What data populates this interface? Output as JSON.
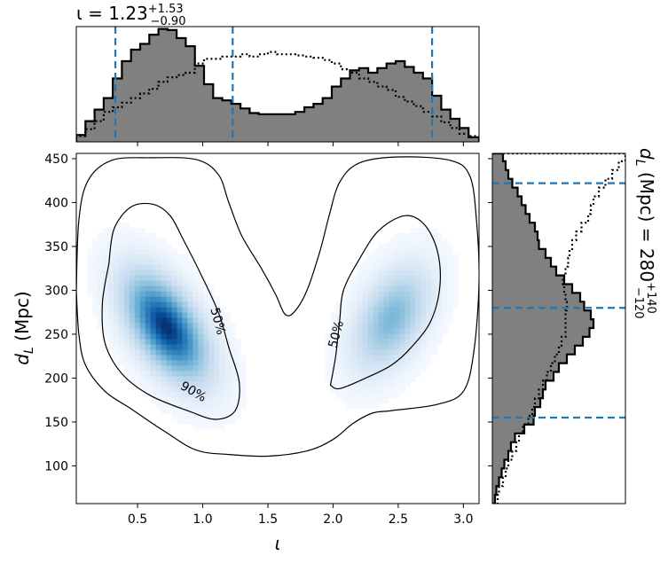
{
  "chart_data": {
    "type": "heatmap",
    "colors": {
      "hist_fill": "#808080",
      "hist_edge": "#000000",
      "dashed": "#1f77b4",
      "density_light": "#f7fbff",
      "density_dark": "#08306b",
      "contour": "#000000"
    },
    "top_title": {
      "symbol": "ι = 1.23",
      "sup": "+1.53",
      "sub": "−0.90"
    },
    "right_title": {
      "symbol": "d",
      "symbol_sub": "L",
      "rest": " (Mpc) = 280",
      "sup": "+140",
      "sub": "−120"
    },
    "main": {
      "xlabel": "ι",
      "ylabel_main": "d",
      "ylabel_sub": "L",
      "ylabel_unit": " (Mpc)",
      "xlim": [
        0.03,
        3.12
      ],
      "ylim": [
        57,
        456
      ],
      "xticks": [
        0.5,
        1.0,
        1.5,
        2.0,
        2.5,
        3.0
      ],
      "xtick_labels": [
        "0.5",
        "1.0",
        "1.5",
        "2.0",
        "2.5",
        "3.0"
      ],
      "yticks": [
        100,
        150,
        200,
        250,
        300,
        350,
        400,
        450
      ],
      "ytick_labels": [
        "100",
        "150",
        "200",
        "250",
        "300",
        "350",
        "400",
        "450"
      ],
      "density_peaks": [
        {
          "x": 0.72,
          "y": 258,
          "sx": 0.22,
          "sy": 42,
          "rho": -0.55,
          "amp": 1.0
        },
        {
          "x": 2.45,
          "y": 268,
          "sx": 0.2,
          "sy": 40,
          "rho": 0.45,
          "amp": 0.55
        }
      ],
      "contours": [
        {
          "label": "90%",
          "label_at": [
            0.93,
            185
          ],
          "label_rot": 30,
          "points": [
            [
              0.03,
              300
            ],
            [
              0.05,
              380
            ],
            [
              0.12,
              425
            ],
            [
              0.3,
              448
            ],
            [
              0.6,
              451
            ],
            [
              0.95,
              449
            ],
            [
              1.12,
              432
            ],
            [
              1.2,
              400
            ],
            [
              1.3,
              362
            ],
            [
              1.45,
              325
            ],
            [
              1.56,
              295
            ],
            [
              1.63,
              273
            ],
            [
              1.7,
              275
            ],
            [
              1.8,
              300
            ],
            [
              1.9,
              345
            ],
            [
              1.97,
              385
            ],
            [
              2.05,
              423
            ],
            [
              2.2,
              445
            ],
            [
              2.5,
              452
            ],
            [
              2.9,
              448
            ],
            [
              3.05,
              430
            ],
            [
              3.1,
              380
            ],
            [
              3.12,
              310
            ],
            [
              3.08,
              230
            ],
            [
              3.0,
              185
            ],
            [
              2.8,
              170
            ],
            [
              2.45,
              163
            ],
            [
              2.3,
              160
            ],
            [
              2.15,
              148
            ],
            [
              2.0,
              130
            ],
            [
              1.8,
              117
            ],
            [
              1.5,
              111
            ],
            [
              1.2,
              113
            ],
            [
              0.95,
              118
            ],
            [
              0.7,
              140
            ],
            [
              0.45,
              165
            ],
            [
              0.25,
              185
            ],
            [
              0.1,
              215
            ],
            [
              0.05,
              250
            ],
            [
              0.03,
              300
            ]
          ]
        },
        {
          "label": "50%",
          "label_at": [
            1.12,
            265
          ],
          "label_rot": 75,
          "points": [
            [
              0.28,
              330
            ],
            [
              0.32,
              370
            ],
            [
              0.45,
              395
            ],
            [
              0.62,
              398
            ],
            [
              0.75,
              385
            ],
            [
              0.85,
              358
            ],
            [
              0.98,
              320
            ],
            [
              1.12,
              275
            ],
            [
              1.2,
              235
            ],
            [
              1.28,
              195
            ],
            [
              1.25,
              163
            ],
            [
              1.1,
              153
            ],
            [
              0.9,
              162
            ],
            [
              0.6,
              180
            ],
            [
              0.38,
              205
            ],
            [
              0.25,
              240
            ],
            [
              0.23,
              285
            ],
            [
              0.28,
              330
            ]
          ]
        },
        {
          "label": "50%",
          "label_at": [
            2.02,
            250
          ],
          "label_rot": -75,
          "points": [
            [
              1.98,
              192
            ],
            [
              2.02,
              225
            ],
            [
              2.05,
              265
            ],
            [
              2.08,
              300
            ],
            [
              2.2,
              335
            ],
            [
              2.35,
              368
            ],
            [
              2.55,
              385
            ],
            [
              2.7,
              375
            ],
            [
              2.8,
              345
            ],
            [
              2.82,
              305
            ],
            [
              2.75,
              265
            ],
            [
              2.6,
              235
            ],
            [
              2.45,
              215
            ],
            [
              2.25,
              200
            ],
            [
              2.05,
              188
            ],
            [
              1.98,
              192
            ]
          ]
        }
      ]
    },
    "top_hist": {
      "xlim": [
        0.03,
        3.12
      ],
      "ylim": [
        0,
        1.0
      ],
      "edges": [
        0.03,
        0.1,
        0.17,
        0.24,
        0.31,
        0.38,
        0.45,
        0.52,
        0.59,
        0.66,
        0.73,
        0.8,
        0.87,
        0.94,
        1.01,
        1.08,
        1.15,
        1.22,
        1.29,
        1.36,
        1.43,
        1.5,
        1.57,
        1.64,
        1.71,
        1.78,
        1.85,
        1.92,
        1.99,
        2.06,
        2.13,
        2.2,
        2.27,
        2.34,
        2.41,
        2.48,
        2.55,
        2.62,
        2.69,
        2.76,
        2.83,
        2.9,
        2.97,
        3.04,
        3.12
      ],
      "values": [
        0.06,
        0.18,
        0.28,
        0.38,
        0.55,
        0.7,
        0.8,
        0.85,
        0.93,
        0.98,
        0.97,
        0.9,
        0.83,
        0.66,
        0.5,
        0.38,
        0.36,
        0.33,
        0.29,
        0.25,
        0.24,
        0.24,
        0.24,
        0.24,
        0.26,
        0.3,
        0.33,
        0.38,
        0.48,
        0.55,
        0.62,
        0.64,
        0.6,
        0.64,
        0.68,
        0.7,
        0.65,
        0.6,
        0.55,
        0.4,
        0.28,
        0.2,
        0.12,
        0.04
      ],
      "prior_values": [
        0.05,
        0.11,
        0.18,
        0.26,
        0.3,
        0.34,
        0.38,
        0.42,
        0.46,
        0.52,
        0.56,
        0.58,
        0.6,
        0.68,
        0.72,
        0.72,
        0.74,
        0.74,
        0.76,
        0.74,
        0.76,
        0.78,
        0.76,
        0.76,
        0.75,
        0.74,
        0.73,
        0.71,
        0.68,
        0.63,
        0.6,
        0.55,
        0.52,
        0.48,
        0.45,
        0.39,
        0.35,
        0.31,
        0.26,
        0.22,
        0.17,
        0.12,
        0.07,
        0.05
      ],
      "dashed_lines": [
        0.33,
        1.23,
        2.76
      ]
    },
    "right_hist": {
      "ylim": [
        57,
        456
      ],
      "xlim": [
        0,
        1.0
      ],
      "edges": [
        57,
        67,
        77,
        87,
        97,
        107,
        117,
        127,
        137,
        147,
        157,
        167,
        177,
        187,
        197,
        207,
        217,
        227,
        237,
        247,
        257,
        267,
        277,
        287,
        297,
        307,
        317,
        327,
        337,
        347,
        357,
        367,
        377,
        387,
        397,
        407,
        417,
        427,
        437,
        447,
        456
      ],
      "values": [
        0.02,
        0.03,
        0.05,
        0.07,
        0.09,
        0.12,
        0.14,
        0.17,
        0.24,
        0.31,
        0.32,
        0.36,
        0.38,
        0.4,
        0.46,
        0.5,
        0.56,
        0.62,
        0.68,
        0.73,
        0.76,
        0.74,
        0.69,
        0.66,
        0.6,
        0.54,
        0.48,
        0.44,
        0.4,
        0.35,
        0.34,
        0.32,
        0.28,
        0.25,
        0.22,
        0.19,
        0.15,
        0.12,
        0.1,
        0.08
      ],
      "prior_values": [
        0.04,
        0.05,
        0.08,
        0.1,
        0.12,
        0.15,
        0.18,
        0.2,
        0.23,
        0.27,
        0.3,
        0.32,
        0.35,
        0.38,
        0.41,
        0.44,
        0.47,
        0.5,
        0.52,
        0.55,
        0.55,
        0.55,
        0.56,
        0.55,
        0.54,
        0.53,
        0.55,
        0.57,
        0.58,
        0.6,
        0.63,
        0.67,
        0.72,
        0.74,
        0.76,
        0.8,
        0.85,
        0.9,
        0.95,
        1.0
      ],
      "dashed_lines": [
        155,
        280,
        422
      ]
    }
  }
}
